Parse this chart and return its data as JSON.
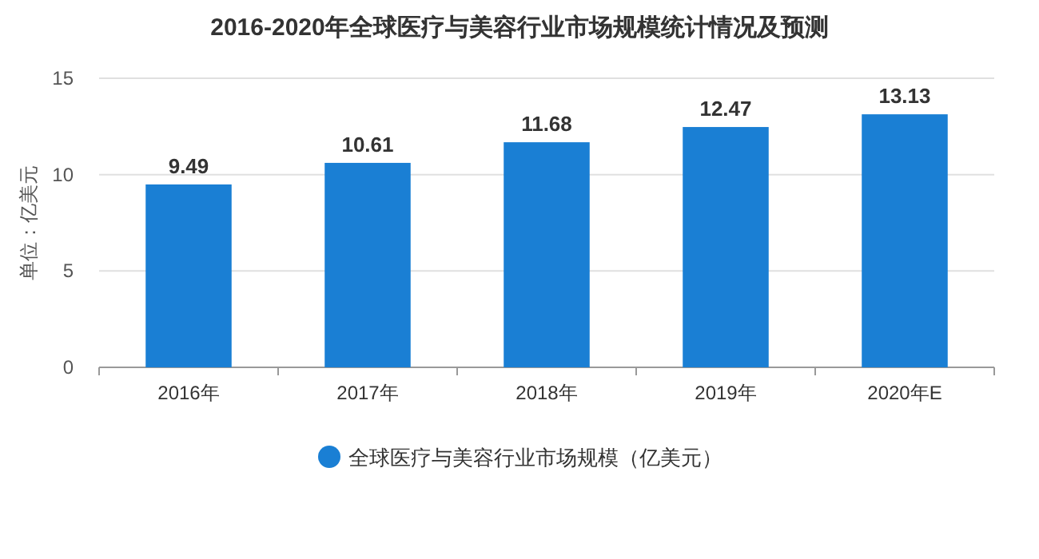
{
  "chart_data": {
    "type": "bar",
    "title": "2016-2020年全球医疗与美容行业市场规模统计情况及预测",
    "ylabel": "单位：亿美元",
    "categories": [
      "2016年",
      "2017年",
      "2018年",
      "2019年",
      "2020年E"
    ],
    "series": [
      {
        "name": "全球医疗与美容行业市场规模（亿美元）",
        "color": "#1a7fd4",
        "values": [
          9.49,
          10.61,
          11.68,
          12.47,
          13.13
        ]
      }
    ],
    "ylim": [
      0,
      15
    ],
    "yticks": [
      0,
      5,
      10,
      15
    ],
    "grid": "y",
    "data_labels": true,
    "legend": "bottom"
  }
}
